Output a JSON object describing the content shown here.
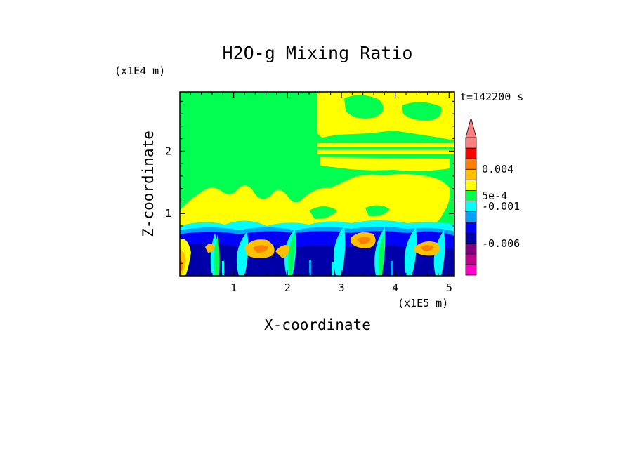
{
  "chart_data": {
    "type": "heatmap",
    "title": "H2O-g Mixing Ratio",
    "xlabel": "X-coordinate",
    "ylabel": "Z-coordinate",
    "x_unit": "(x1E5 m)",
    "y_unit": "(x1E4 m)",
    "time_label": "t=142200 s",
    "x_ticks": [
      "1",
      "2",
      "3",
      "4",
      "5"
    ],
    "x_tick_values": [
      1,
      2,
      3,
      4,
      5
    ],
    "y_ticks": [
      "1",
      "2"
    ],
    "y_tick_values": [
      1,
      2
    ],
    "xlim": [
      0,
      5.1
    ],
    "ylim": [
      0,
      2.95
    ],
    "colorbar": {
      "labels": [
        "0.004",
        "5e-4",
        "-0.001",
        "-0.006"
      ],
      "colors": [
        "#ff00c8",
        "#c0008c",
        "#800080",
        "#0000a8",
        "#0000ff",
        "#00a0ff",
        "#00ffff",
        "#00ff50",
        "#ffff00",
        "#ffc000",
        "#ff8000",
        "#ff0000",
        "#ff8080"
      ],
      "extend": "top"
    }
  }
}
